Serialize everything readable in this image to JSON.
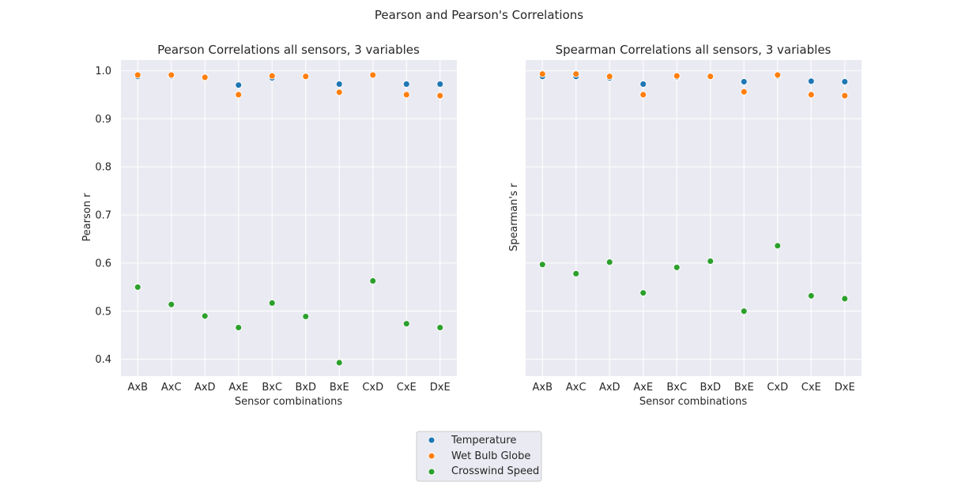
{
  "figure": {
    "suptitle": "Pearson and Pearson's Correlations"
  },
  "legend": {
    "placement": "bottom-center",
    "entries": [
      {
        "label": "Temperature",
        "color": "#1f77b4"
      },
      {
        "label": "Wet Bulb Globe",
        "color": "#ff7f0e"
      },
      {
        "label": "Crosswind Speed",
        "color": "#2ca02c"
      }
    ]
  },
  "chart_data": [
    {
      "type": "scatter",
      "title": "Pearson Correlations all sensors, 3 variables",
      "xlabel": "Sensor combinations",
      "ylabel": "Pearson r",
      "categories": [
        "AxB",
        "AxC",
        "AxD",
        "AxE",
        "BxC",
        "BxD",
        "BxE",
        "CxD",
        "CxE",
        "DxE"
      ],
      "ylim": [
        0.365,
        1.022
      ],
      "yticks": [
        "0.4",
        "0.5",
        "0.6",
        "0.7",
        "0.8",
        "0.9",
        "1.0"
      ],
      "grid": true,
      "series": [
        {
          "name": "Temperature",
          "color": "#1f77b4",
          "values": [
            0.988,
            0.989,
            0.986,
            0.97,
            0.985,
            0.988,
            0.972,
            0.991,
            0.972,
            0.972
          ]
        },
        {
          "name": "Wet Bulb Globe",
          "color": "#ff7f0e",
          "values": [
            0.991,
            0.991,
            0.986,
            0.95,
            0.989,
            0.988,
            0.955,
            0.991,
            0.95,
            0.948
          ]
        },
        {
          "name": "Crosswind Speed",
          "color": "#2ca02c",
          "values": [
            0.55,
            0.514,
            0.49,
            0.466,
            0.517,
            0.489,
            0.393,
            0.563,
            0.474,
            0.466
          ]
        }
      ]
    },
    {
      "type": "scatter",
      "title": "Spearman Correlations all sensors, 3 variables",
      "xlabel": "Sensor combinations",
      "ylabel": "Spearman's r",
      "categories": [
        "AxB",
        "AxC",
        "AxD",
        "AxE",
        "BxC",
        "BxD",
        "BxE",
        "CxD",
        "CxE",
        "DxE"
      ],
      "ylim": [
        0.365,
        1.022
      ],
      "yticks": [],
      "sharey": true,
      "grid": true,
      "series": [
        {
          "name": "Temperature",
          "color": "#1f77b4",
          "values": [
            0.988,
            0.988,
            0.985,
            0.972,
            0.987,
            0.988,
            0.977,
            0.989,
            0.978,
            0.977
          ]
        },
        {
          "name": "Wet Bulb Globe",
          "color": "#ff7f0e",
          "values": [
            0.993,
            0.993,
            0.988,
            0.95,
            0.989,
            0.988,
            0.956,
            0.991,
            0.95,
            0.948
          ]
        },
        {
          "name": "Crosswind Speed",
          "color": "#2ca02c",
          "values": [
            0.597,
            0.578,
            0.602,
            0.538,
            0.591,
            0.604,
            0.5,
            0.636,
            0.532,
            0.526
          ]
        }
      ]
    }
  ]
}
